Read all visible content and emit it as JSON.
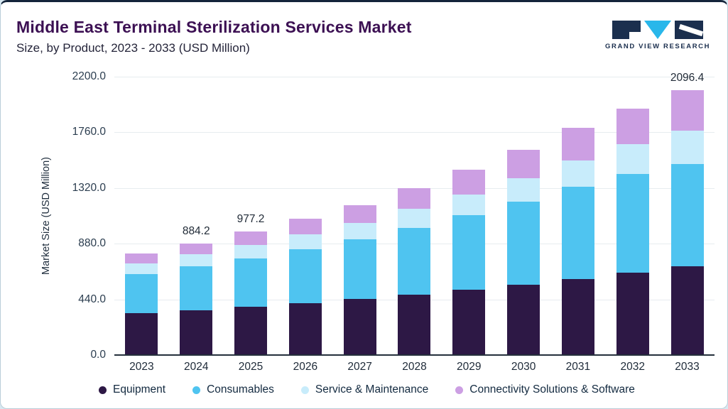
{
  "header": {
    "title": "Middle East Terminal Sterilization Services Market",
    "subtitle": "Size, by Product, 2023 - 2033 (USD Million)",
    "logo_text": "GRAND VIEW RESEARCH"
  },
  "chart_data": {
    "type": "bar",
    "stacked": true,
    "title": "Middle East Terminal Sterilization Services Market Size, by Product, 2023 - 2033 (USD Million)",
    "xlabel": "",
    "ylabel": "Market Size (USD Million)",
    "ylim": [
      0,
      2200
    ],
    "yticks": [
      "0.0",
      "440.0",
      "880.0",
      "1320.0",
      "1760.0",
      "2200.0"
    ],
    "grid": true,
    "legend_position": "bottom",
    "categories": [
      "2023",
      "2024",
      "2025",
      "2026",
      "2027",
      "2028",
      "2029",
      "2030",
      "2031",
      "2032",
      "2033"
    ],
    "series": [
      {
        "name": "Equipment",
        "color": "#2d1845",
        "values": [
          330.0,
          356.0,
          383.0,
          412.0,
          443.0,
          478.0,
          516.0,
          557.0,
          601.0,
          649.0,
          700.0
        ]
      },
      {
        "name": "Consumables",
        "color": "#4fc4f0",
        "values": [
          310.0,
          344.0,
          381.0,
          424.0,
          470.0,
          529.0,
          589.0,
          655.0,
          729.0,
          783.0,
          810.0
        ]
      },
      {
        "name": "Service & Maintenance",
        "color": "#c8ecfb",
        "values": [
          85.0,
          96.0,
          107.0,
          118.0,
          131.0,
          148.0,
          166.0,
          186.0,
          209.0,
          233.0,
          265.0
        ]
      },
      {
        "name": "Connectivity Solutions & Software",
        "color": "#cc9fe3",
        "values": [
          75.0,
          88.2,
          106.2,
          121.0,
          141.0,
          165.0,
          194.0,
          222.0,
          256.0,
          285.0,
          321.4
        ]
      }
    ],
    "total_labels": {
      "2024": "884.2",
      "2025": "977.2",
      "2033": "2096.4"
    }
  }
}
